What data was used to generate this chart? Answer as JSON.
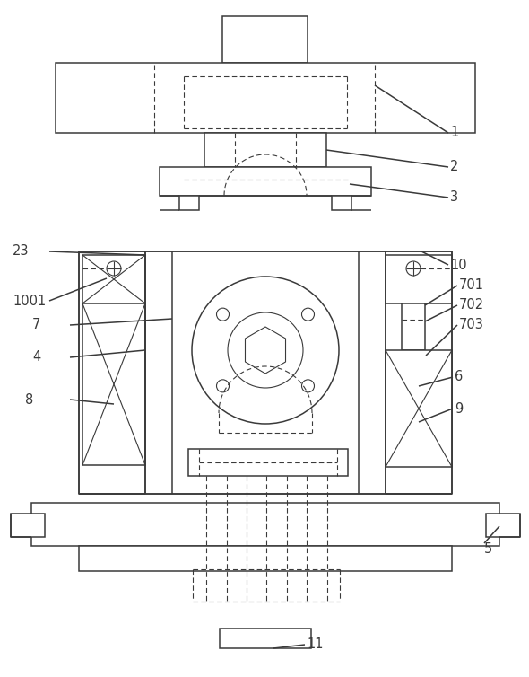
{
  "bg_color": "#ffffff",
  "line_color": "#3a3a3a",
  "lw": 1.1,
  "lw_thin": 0.8,
  "fig_w": 5.9,
  "fig_h": 7.54
}
